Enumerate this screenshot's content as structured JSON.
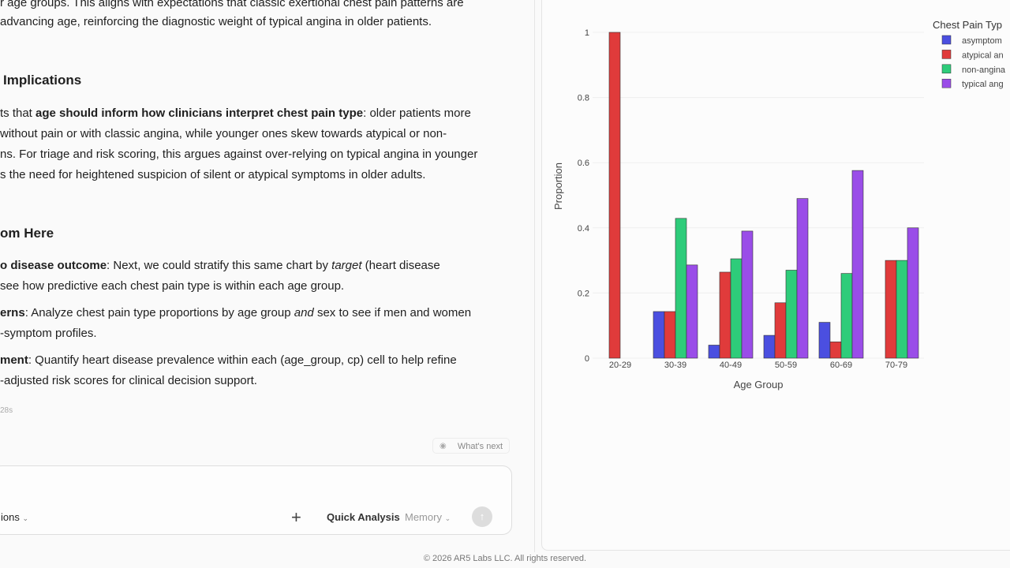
{
  "summary": {
    "line1": "r age groups. This aligns with expectations that classic exertional chest pain patterns are",
    "line2": "advancing age, reinforcing the diagnostic weight of typical angina in older patients."
  },
  "implications": {
    "heading": "Implications",
    "lead": "ts that ",
    "lead_bold": "age should inform how clinicians interpret chest pain type",
    "lead_rest": ": older patients more",
    "line2": " without pain or with classic angina, while younger ones skew towards atypical or non-",
    "line3": "ns. For triage and risk scoring, this argues against over-relying on typical angina in younger",
    "line4": "s the need for heightened suspicion of silent or atypical symptoms in older adults."
  },
  "next_steps": {
    "heading": "om Here",
    "items": [
      {
        "bold": "o disease outcome",
        "text": ": Next, we could stratify this same chart by ",
        "em": "target",
        "tail": " (heart disease",
        "cont": "see how predictive each chest pain type is within each age group."
      },
      {
        "bold": "erns",
        "text": ": Analyze chest pain type proportions by age group ",
        "em": "and",
        "tail": " sex to see if men and women",
        "cont": "-symptom profiles."
      },
      {
        "bold": "ment",
        "text": ": Quantify heart disease prevalence within each (age_group, cp) cell to help refine",
        "cont": "-adjusted risk scores for clinical decision support."
      }
    ]
  },
  "elapsed": "28s",
  "whats_next": "What's next",
  "composer": {
    "options": "ions",
    "quick_analysis": "Quick Analysis",
    "memory": "Memory"
  },
  "footer": "© 2026 AR5 Labs LLC. All rights reserved.",
  "chart_data": {
    "type": "bar",
    "x_label": "Age Group",
    "y_label": "Proportion",
    "legend_title": "Chest Pain Typ",
    "categories": [
      "20-29",
      "30-39",
      "40-49",
      "50-59",
      "60-69",
      "70-79"
    ],
    "series": [
      {
        "name": "asymptom",
        "color": "#4b4fe0",
        "values": [
          0,
          0.143,
          0.04,
          0.07,
          0.11,
          0
        ]
      },
      {
        "name": "atypical an",
        "color": "#e03b3b",
        "values": [
          1,
          0.143,
          0.264,
          0.17,
          0.05,
          0.3
        ]
      },
      {
        "name": "non-angina",
        "color": "#2ecc7a",
        "values": [
          0,
          0.429,
          0.305,
          0.27,
          0.26,
          0.3
        ]
      },
      {
        "name": "typical ang",
        "color": "#9a4de8",
        "values": [
          0,
          0.286,
          0.39,
          0.49,
          0.576,
          0.4
        ]
      }
    ],
    "ylim": [
      0,
      1
    ],
    "yticks": [
      0,
      0.2,
      0.4,
      0.6,
      0.8,
      1
    ],
    "grid": true
  }
}
